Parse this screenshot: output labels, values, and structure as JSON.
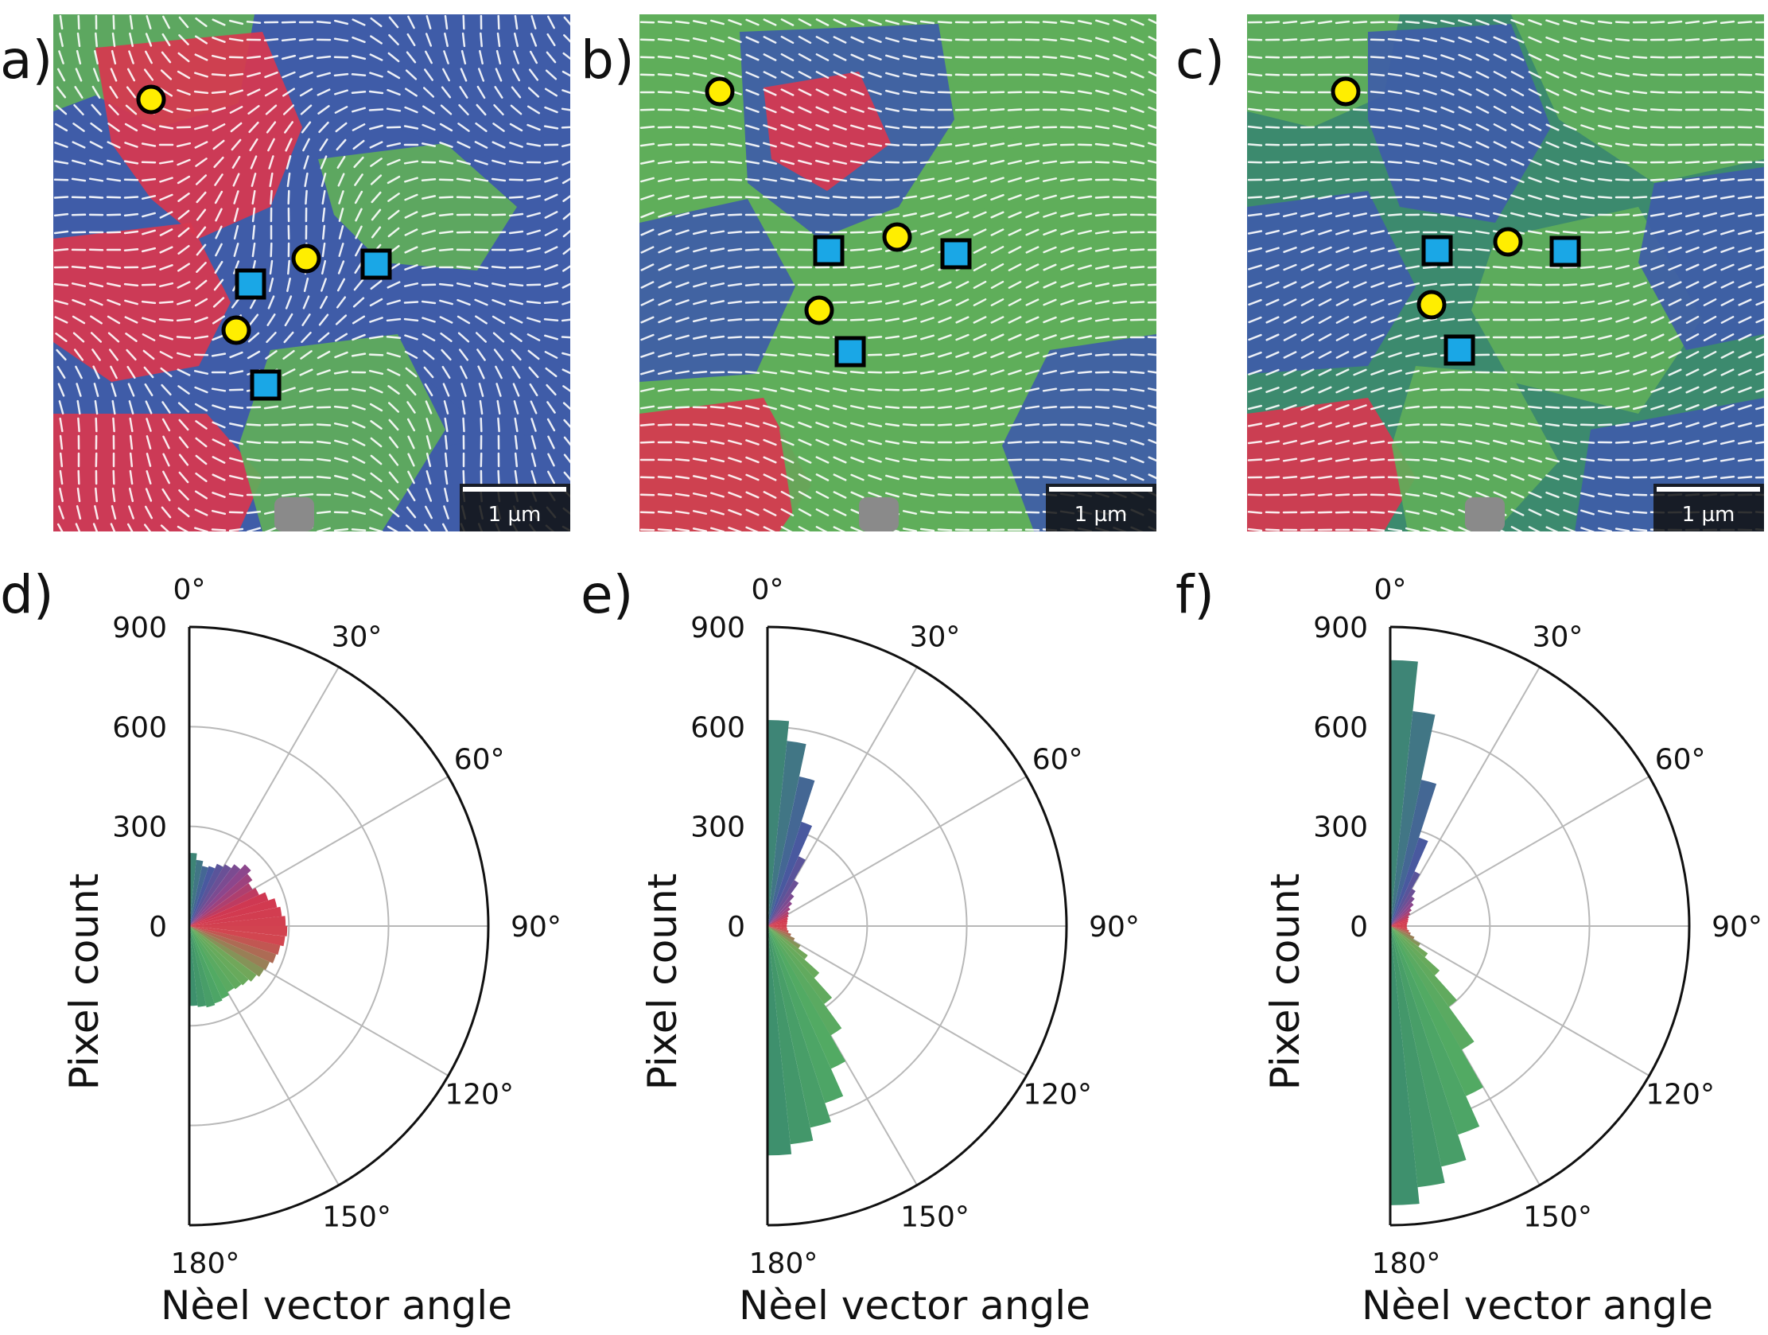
{
  "figure": {
    "panel_labels": [
      "a)",
      "b)",
      "c)",
      "d)",
      "e)",
      "f)"
    ],
    "scale_bar_label": "1 µm",
    "colors": {
      "domain_red": "#d8374f",
      "domain_green": "#5fae5a",
      "domain_blue": "#3f5ca8",
      "domain_teal": "#3c8a6e",
      "vector_line": "#ffffff",
      "circle_marker": "#ffee00",
      "square_marker": "#1aa7e6",
      "defect_gray": "#8a8a8a"
    },
    "maps": [
      {
        "label": "a)",
        "circle_markers": 3,
        "square_markers": 3,
        "regions": [
          {
            "color": "domain_green"
          },
          {
            "color": "domain_red"
          },
          {
            "color": "domain_blue"
          },
          {
            "color": "domain_red"
          },
          {
            "color": "domain_green"
          },
          {
            "color": "domain_blue"
          },
          {
            "color": "domain_red"
          },
          {
            "color": "domain_green"
          },
          {
            "color": "domain_blue"
          }
        ]
      },
      {
        "label": "b)",
        "circle_markers": 3,
        "square_markers": 3,
        "regions": [
          {
            "color": "domain_green"
          },
          {
            "color": "domain_blue"
          },
          {
            "color": "domain_red"
          },
          {
            "color": "domain_green"
          },
          {
            "color": "domain_blue"
          },
          {
            "color": "domain_green"
          },
          {
            "color": "domain_red"
          },
          {
            "color": "domain_green"
          },
          {
            "color": "domain_blue"
          }
        ]
      },
      {
        "label": "c)",
        "circle_markers": 3,
        "square_markers": 3,
        "regions": [
          {
            "color": "domain_green"
          },
          {
            "color": "domain_blue"
          },
          {
            "color": "domain_green"
          },
          {
            "color": "domain_blue"
          },
          {
            "color": "domain_green"
          },
          {
            "color": "domain_blue"
          },
          {
            "color": "domain_red"
          },
          {
            "color": "domain_green"
          },
          {
            "color": "domain_blue"
          }
        ]
      }
    ]
  },
  "chart_data": [
    {
      "type": "polar-histogram",
      "panel": "d)",
      "xlabel": "Nèel vector angle",
      "ylabel": "Pixel count",
      "theta_range": [
        0,
        180
      ],
      "theta_ticks": [
        "0°",
        "30°",
        "60°",
        "90°",
        "120°",
        "150°",
        "180°"
      ],
      "r_ticks": [
        "0",
        "300",
        "600",
        "900"
      ],
      "ylim": [
        0,
        900
      ],
      "bin_width_deg": 6,
      "bin_centers_deg": [
        3,
        9,
        15,
        21,
        27,
        33,
        39,
        45,
        51,
        57,
        63,
        69,
        75,
        81,
        87,
        93,
        99,
        105,
        111,
        117,
        123,
        129,
        135,
        141,
        147,
        153,
        159,
        165,
        171,
        177
      ],
      "values": [
        220,
        200,
        185,
        190,
        205,
        215,
        230,
        250,
        235,
        220,
        230,
        250,
        270,
        280,
        290,
        295,
        290,
        280,
        275,
        265,
        260,
        250,
        240,
        235,
        230,
        240,
        245,
        250,
        245,
        240
      ]
    },
    {
      "type": "polar-histogram",
      "panel": "e)",
      "xlabel": "Nèel vector angle",
      "ylabel": "Pixel count",
      "theta_range": [
        0,
        180
      ],
      "theta_ticks": [
        "0°",
        "30°",
        "60°",
        "90°",
        "120°",
        "150°",
        "180°"
      ],
      "r_ticks": [
        "0",
        "300",
        "600",
        "900"
      ],
      "ylim": [
        0,
        900
      ],
      "bin_width_deg": 6,
      "bin_centers_deg": [
        3,
        9,
        15,
        21,
        27,
        33,
        39,
        45,
        51,
        57,
        63,
        69,
        75,
        81,
        87,
        93,
        99,
        105,
        111,
        117,
        123,
        129,
        135,
        141,
        147,
        153,
        159,
        165,
        171,
        177
      ],
      "values": [
        620,
        560,
        460,
        330,
        230,
        160,
        120,
        100,
        85,
        75,
        70,
        65,
        62,
        60,
        58,
        58,
        60,
        65,
        75,
        90,
        115,
        150,
        210,
        290,
        380,
        470,
        560,
        620,
        660,
        690
      ]
    },
    {
      "type": "polar-histogram",
      "panel": "f)",
      "xlabel": "Nèel vector angle",
      "ylabel": "Pixel count",
      "theta_range": [
        0,
        180
      ],
      "theta_ticks": [
        "0°",
        "30°",
        "60°",
        "90°",
        "120°",
        "150°",
        "180°"
      ],
      "r_ticks": [
        "0",
        "300",
        "600",
        "900"
      ],
      "ylim": [
        0,
        900
      ],
      "bin_width_deg": 6,
      "bin_centers_deg": [
        3,
        9,
        15,
        21,
        27,
        33,
        39,
        45,
        51,
        57,
        63,
        69,
        75,
        81,
        87,
        93,
        99,
        105,
        111,
        117,
        123,
        129,
        135,
        141,
        147,
        153,
        159,
        165,
        171,
        177
      ],
      "values": [
        800,
        650,
        450,
        280,
        180,
        130,
        110,
        95,
        80,
        70,
        62,
        58,
        55,
        52,
        50,
        50,
        52,
        58,
        65,
        80,
        105,
        140,
        200,
        300,
        430,
        560,
        660,
        740,
        790,
        840
      ]
    }
  ]
}
